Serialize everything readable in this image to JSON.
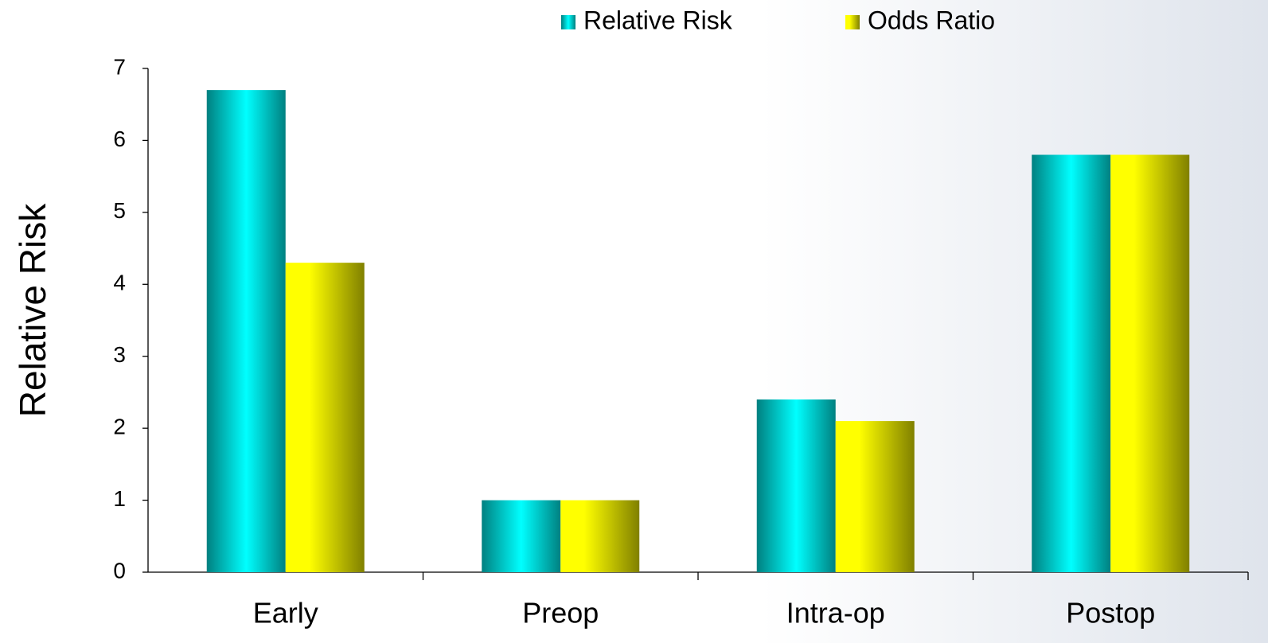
{
  "chart_data": {
    "type": "bar",
    "y_label": "Relative Risk",
    "categories": [
      "Early",
      "Preop",
      "Intra-op",
      "Postop"
    ],
    "series": [
      {
        "name": "Relative Risk",
        "color": "#00ffff",
        "values": [
          6.7,
          1.0,
          2.4,
          5.8
        ]
      },
      {
        "name": "Odds Ratio",
        "color": "#ffff00",
        "values": [
          4.3,
          1.0,
          2.1,
          5.8
        ]
      }
    ],
    "ylim": [
      0,
      7
    ],
    "yticks": [
      0,
      1,
      2,
      3,
      4,
      5,
      6,
      7
    ],
    "grid": false,
    "legend": "top"
  }
}
